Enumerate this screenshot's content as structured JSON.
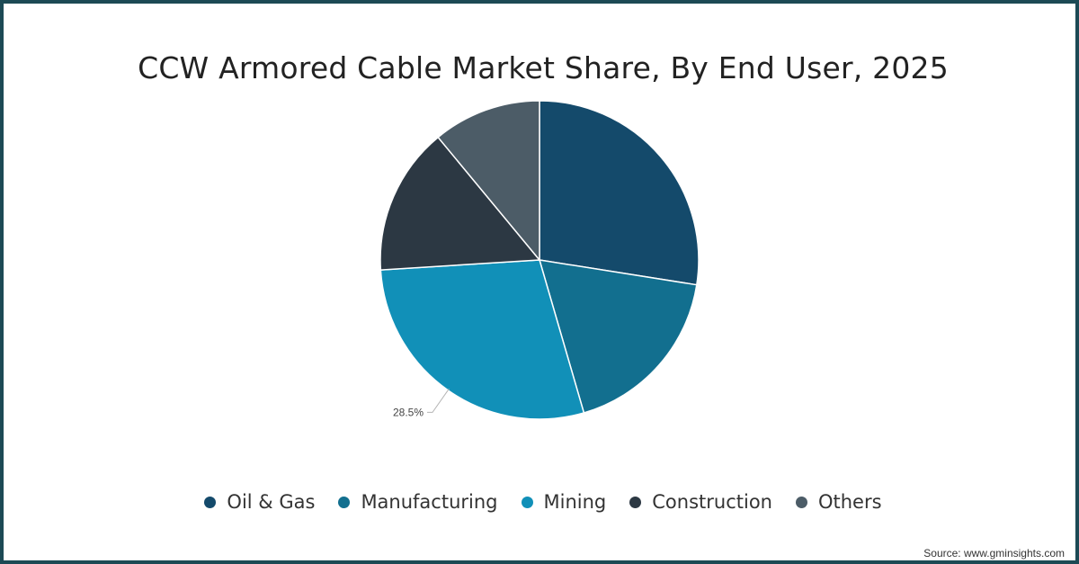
{
  "chart_data": {
    "type": "pie",
    "title": "CCW Armored Cable Market Share, By End User, 2025",
    "categories": [
      "Oil & Gas",
      "Manufacturing",
      "Mining",
      "Construction",
      "Others"
    ],
    "values": [
      27.5,
      18.0,
      28.5,
      15.0,
      11.0
    ],
    "colors": [
      "#144a6b",
      "#126f8f",
      "#1190b8",
      "#2c3843",
      "#4c5c67"
    ],
    "data_labels": [
      {
        "category": "Mining",
        "text": "28.5%"
      }
    ],
    "start_angle_deg": 0,
    "direction": "clockwise",
    "legend_position": "bottom"
  },
  "source": "Source: www.gminsights.com"
}
